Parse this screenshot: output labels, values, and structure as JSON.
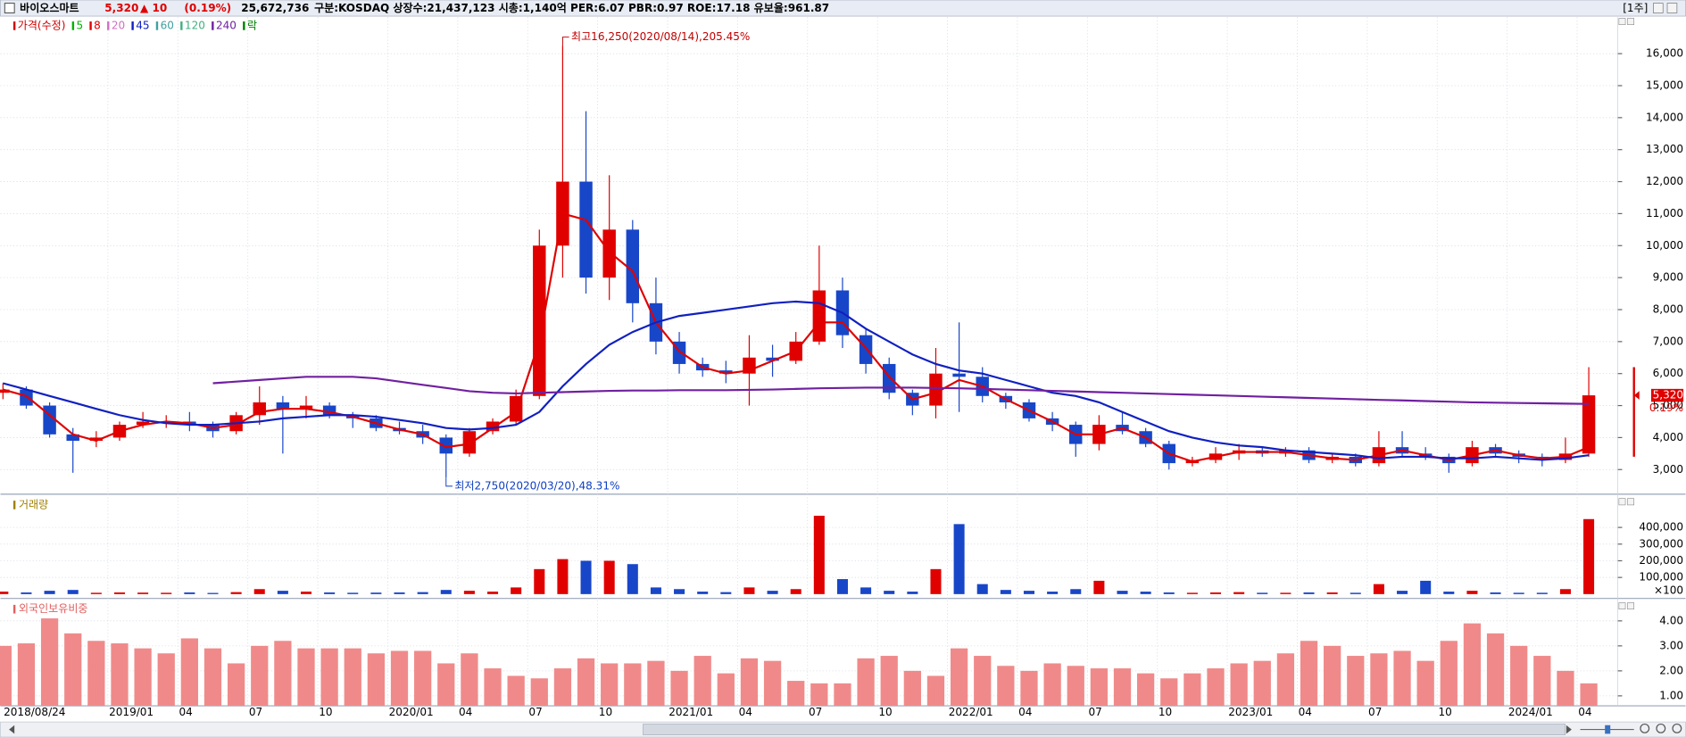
{
  "header": {
    "name": "바이오스마트",
    "price": "5,320",
    "change": "▲ 10",
    "change_rate": "(0.19%)",
    "volume": "25,672,736",
    "info": "구분:KOSDAQ 상장수:21,437,123 시총:1,140억 PER:6.07 PBR:0.97 ROE:17.18 유보율:961.87",
    "period": "[1주]"
  },
  "chart_data": [
    {
      "type": "candlestick",
      "up_color": "#e00000",
      "down_color": "#1846c8",
      "legend": [
        {
          "name": "가격(수정)",
          "color": "#d00000"
        },
        {
          "name": "5",
          "color": "#00b000"
        },
        {
          "name": "8",
          "color": "#e00000"
        },
        {
          "name": "20",
          "color": "#d070c0"
        },
        {
          "name": "45",
          "color": "#1020c0"
        },
        {
          "name": "60",
          "color": "#40a0a0"
        },
        {
          "name": "120",
          "color": "#40b080"
        },
        {
          "name": "240",
          "color": "#7020a0"
        },
        {
          "name": "락",
          "color": "#008000"
        }
      ],
      "open": [
        5400,
        5500,
        5000,
        4100,
        3900,
        4000,
        4400,
        4500,
        4500,
        4400,
        4200,
        4700,
        5100,
        4900,
        5000,
        4700,
        4600,
        4300,
        4200,
        4000,
        3500,
        4200,
        4500,
        5300,
        10000,
        12000,
        9000,
        10500,
        8200,
        7000,
        6300,
        6100,
        6000,
        6500,
        6400,
        7000,
        8600,
        7200,
        6300,
        5400,
        5000,
        6000,
        5900,
        5300,
        5100,
        4600,
        4400,
        3800,
        4400,
        4200,
        3800,
        3200,
        3300,
        3500,
        3600,
        3500,
        3600,
        3300,
        3400,
        3200,
        3700,
        3500,
        3400,
        3200,
        3700,
        3500,
        3400,
        3300,
        3500
      ],
      "high": [
        5700,
        5600,
        5100,
        4300,
        4200,
        4500,
        4800,
        4700,
        4800,
        4500,
        4800,
        5600,
        5300,
        5300,
        5100,
        4800,
        4700,
        4500,
        4400,
        4100,
        4300,
        4600,
        5500,
        10500,
        16250,
        14200,
        12200,
        10800,
        9000,
        7300,
        6500,
        6400,
        7200,
        6900,
        7300,
        10000,
        9000,
        7400,
        6500,
        5500,
        6800,
        7600,
        6200,
        5400,
        5200,
        4800,
        4500,
        4700,
        4800,
        4300,
        3900,
        3400,
        3700,
        3800,
        3700,
        3700,
        3700,
        3500,
        3500,
        4200,
        4200,
        3700,
        3500,
        3900,
        3800,
        3600,
        3500,
        4000,
        6200
      ],
      "low": [
        5200,
        4900,
        4000,
        2900,
        3700,
        3900,
        4300,
        4300,
        4200,
        4000,
        4100,
        4400,
        3500,
        4600,
        4600,
        4300,
        4200,
        4100,
        3800,
        2750,
        3400,
        4100,
        4400,
        5200,
        9000,
        8500,
        8300,
        7600,
        6600,
        6000,
        5900,
        5700,
        5000,
        5900,
        6300,
        6900,
        6800,
        6000,
        5200,
        4700,
        4600,
        4800,
        5100,
        4900,
        4500,
        4200,
        3400,
        3600,
        4100,
        3700,
        3000,
        3100,
        3200,
        3300,
        3400,
        3400,
        3200,
        3200,
        3100,
        3100,
        3400,
        3300,
        2900,
        3100,
        3400,
        3200,
        3100,
        3200,
        3400
      ],
      "close": [
        5500,
        5000,
        4100,
        3900,
        4000,
        4400,
        4500,
        4500,
        4400,
        4200,
        4700,
        5100,
        4900,
        5000,
        4700,
        4600,
        4300,
        4200,
        4000,
        3500,
        4200,
        4500,
        5300,
        10000,
        12000,
        9000,
        10500,
        8200,
        7000,
        6300,
        6100,
        6000,
        6500,
        6400,
        7000,
        8600,
        7200,
        6300,
        5400,
        5000,
        6000,
        5900,
        5300,
        5100,
        4600,
        4400,
        3800,
        4400,
        4200,
        3800,
        3200,
        3300,
        3500,
        3600,
        3500,
        3600,
        3300,
        3400,
        3200,
        3700,
        3500,
        3400,
        3200,
        3700,
        3500,
        3400,
        3300,
        3500,
        5320
      ],
      "series": [
        {
          "name": "8",
          "color": "#e00000",
          "values": [
            5500,
            5300,
            4700,
            4100,
            3900,
            4200,
            4400,
            4500,
            4450,
            4300,
            4400,
            4800,
            4900,
            4900,
            4800,
            4650,
            4450,
            4250,
            4100,
            3700,
            3800,
            4300,
            4800,
            7000,
            11000,
            10800,
            9800,
            9200,
            7600,
            6700,
            6200,
            6000,
            6100,
            6400,
            6700,
            7600,
            7600,
            6800,
            5900,
            5200,
            5400,
            5800,
            5600,
            5200,
            4850,
            4500,
            4100,
            4100,
            4300,
            4000,
            3500,
            3250,
            3400,
            3550,
            3550,
            3550,
            3450,
            3350,
            3300,
            3450,
            3600,
            3450,
            3300,
            3450,
            3600,
            3450,
            3350,
            3400,
            3700
          ]
        },
        {
          "name": "45",
          "color": "#1020c0",
          "values": [
            5700,
            5500,
            5300,
            5100,
            4900,
            4700,
            4550,
            4450,
            4400,
            4400,
            4450,
            4500,
            4600,
            4650,
            4700,
            4700,
            4650,
            4550,
            4450,
            4300,
            4250,
            4300,
            4400,
            4800,
            5600,
            6300,
            6900,
            7300,
            7600,
            7800,
            7900,
            8000,
            8100,
            8200,
            8250,
            8200,
            7900,
            7400,
            7000,
            6600,
            6300,
            6100,
            6000,
            5800,
            5600,
            5400,
            5300,
            5100,
            4800,
            4500,
            4200,
            4000,
            3850,
            3750,
            3700,
            3600,
            3550,
            3500,
            3450,
            3350,
            3400,
            3400,
            3350,
            3350,
            3400,
            3350,
            3300,
            3350,
            3450
          ]
        },
        {
          "name": "240",
          "color": "#7020a0",
          "values": [
            null,
            null,
            null,
            null,
            null,
            null,
            null,
            null,
            null,
            5700,
            5750,
            5800,
            5850,
            5900,
            5900,
            5900,
            5850,
            5750,
            5650,
            5550,
            5450,
            5400,
            5380,
            5400,
            5420,
            5440,
            5460,
            5470,
            5470,
            5480,
            5480,
            5480,
            5490,
            5500,
            5520,
            5540,
            5550,
            5560,
            5560,
            5560,
            5550,
            5540,
            5520,
            5500,
            5480,
            5460,
            5440,
            5420,
            5400,
            5380,
            5360,
            5340,
            5320,
            5300,
            5280,
            5260,
            5240,
            5220,
            5200,
            5180,
            5160,
            5140,
            5120,
            5100,
            5090,
            5080,
            5070,
            5060,
            5050
          ]
        }
      ],
      "ylim": [
        2230,
        17140
      ],
      "yticks": [
        {
          "value": 3000,
          "label": "3,000"
        },
        {
          "value": 4000,
          "label": "4,000"
        },
        {
          "value": 5000,
          "label": "5,000"
        },
        {
          "value": 6000,
          "label": "6,000"
        },
        {
          "value": 7000,
          "label": "7,000"
        },
        {
          "value": 8000,
          "label": "8,000"
        },
        {
          "value": 9000,
          "label": "9,000"
        },
        {
          "value": 10000,
          "label": "10,000"
        },
        {
          "value": 11000,
          "label": "11,000"
        },
        {
          "value": 12000,
          "label": "12,000"
        },
        {
          "value": 13000,
          "label": "13,000"
        },
        {
          "value": 14000,
          "label": "14,000"
        },
        {
          "value": 15000,
          "label": "15,000"
        },
        {
          "value": 16000,
          "label": "16,000"
        }
      ],
      "high_label": "최고16,250(2020/08/14),205.45%",
      "low_label": "최저2,750(2020/03/20),48.31%",
      "last_label": "5,320",
      "last_change": "0.19%",
      "grid": true
    },
    {
      "type": "bar",
      "name": "거래량",
      "name_color": "#a08000",
      "values": [
        15000,
        10000,
        20000,
        25000,
        8000,
        10000,
        9000,
        8000,
        10000,
        7000,
        12000,
        30000,
        20000,
        15000,
        10000,
        8000,
        9000,
        10000,
        12000,
        25000,
        20000,
        15000,
        40000,
        150000,
        210000,
        200000,
        200000,
        180000,
        40000,
        30000,
        15000,
        12000,
        40000,
        20000,
        30000,
        470000,
        90000,
        40000,
        20000,
        15000,
        150000,
        420000,
        60000,
        25000,
        20000,
        15000,
        30000,
        80000,
        20000,
        15000,
        10000,
        8000,
        10000,
        12000,
        8000,
        8000,
        10000,
        10000,
        8000,
        60000,
        20000,
        80000,
        15000,
        20000,
        10000,
        8000,
        8000,
        30000,
        450000
      ],
      "ylim": [
        0,
        580000
      ],
      "yticks": [
        {
          "value": 100000,
          "label": "100,000"
        },
        {
          "value": 200000,
          "label": "200,000"
        },
        {
          "value": 300000,
          "label": "300,000"
        },
        {
          "value": 400000,
          "label": "400,000"
        }
      ],
      "unit_label": "×100",
      "grid": true
    },
    {
      "type": "bar",
      "name": "외국인보유비중",
      "name_color": "#e06060",
      "color": "#f08a8a",
      "categories": [
        "2018/08/24",
        null,
        null,
        null,
        null,
        "2019/01",
        null,
        null,
        "04",
        null,
        null,
        "07",
        null,
        null,
        "10",
        null,
        null,
        "2020/01",
        null,
        null,
        "04",
        null,
        null,
        "07",
        null,
        null,
        "10",
        null,
        null,
        "2021/01",
        null,
        null,
        "04",
        null,
        null,
        "07",
        null,
        null,
        "10",
        null,
        null,
        "2022/01",
        null,
        null,
        "04",
        null,
        null,
        "07",
        null,
        null,
        "10",
        null,
        null,
        "2023/01",
        null,
        null,
        "04",
        null,
        null,
        "07",
        null,
        null,
        "10",
        null,
        null,
        "2024/01",
        null,
        null,
        "04"
      ],
      "values": [
        3.0,
        3.1,
        4.1,
        3.5,
        3.2,
        3.1,
        2.9,
        2.7,
        3.3,
        2.9,
        2.3,
        3.0,
        3.2,
        2.9,
        2.9,
        2.9,
        2.7,
        2.8,
        2.8,
        2.3,
        2.7,
        2.1,
        1.8,
        1.7,
        2.1,
        2.5,
        2.3,
        2.3,
        2.4,
        2.0,
        2.6,
        1.9,
        2.5,
        2.4,
        1.6,
        1.5,
        1.5,
        2.5,
        2.6,
        2.0,
        1.8,
        2.9,
        2.6,
        2.2,
        2.0,
        2.3,
        2.2,
        2.1,
        2.1,
        1.9,
        1.7,
        1.9,
        2.1,
        2.3,
        2.4,
        2.7,
        3.2,
        3.0,
        2.6,
        2.7,
        2.8,
        2.4,
        3.2,
        3.9,
        3.5,
        3.0,
        2.6,
        2.0,
        1.5
      ],
      "ylim": [
        0.6,
        4.77
      ],
      "yticks": [
        {
          "value": 1,
          "label": "1.00"
        },
        {
          "value": 2,
          "label": "2.00"
        },
        {
          "value": 3,
          "label": "3.00"
        },
        {
          "value": 4,
          "label": "4.00"
        }
      ],
      "grid": true
    }
  ]
}
